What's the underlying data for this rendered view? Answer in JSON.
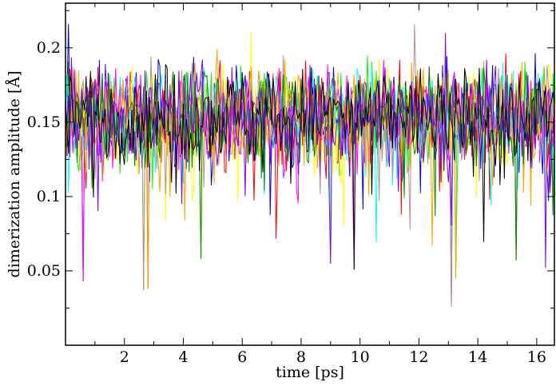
{
  "chart_data": {
    "type": "line",
    "xlabel": "time [ps]",
    "ylabel": "dimerization amplitude [Å]",
    "xlim": [
      0,
      16.6
    ],
    "ylim": [
      0,
      0.23
    ],
    "x_ticks": [
      2,
      4,
      6,
      8,
      10,
      12,
      14,
      16
    ],
    "x_tick_labels": [
      "2",
      "4",
      "6",
      "8",
      "10",
      "12",
      "14",
      "16"
    ],
    "y_ticks": [
      0.05,
      0.1,
      0.15,
      0.2
    ],
    "y_tick_labels": [
      "0.05",
      "0.1",
      "0.15",
      "0.2"
    ],
    "grid": false,
    "legend": "none",
    "sampling": {
      "dt_ps": 0.05,
      "mean": 0.155,
      "typical_max": 0.21,
      "typical_min": 0.09
    },
    "series_colors": [
      "#0000ff",
      "#00ff00",
      "#ff0000",
      "#ffff00",
      "#00ffff",
      "#ff00ff",
      "#bc8f8f",
      "#ffa500",
      "#008b00",
      "#7f00ff",
      "#000000"
    ],
    "notable_minima": [
      {
        "x": 0.6,
        "y": 0.043
      },
      {
        "x": 2.65,
        "y": 0.037
      },
      {
        "x": 2.8,
        "y": 0.038
      },
      {
        "x": 4.6,
        "y": 0.058
      },
      {
        "x": 9.0,
        "y": 0.055
      },
      {
        "x": 9.8,
        "y": 0.051
      },
      {
        "x": 13.1,
        "y": 0.026
      },
      {
        "x": 13.25,
        "y": 0.045
      },
      {
        "x": 15.3,
        "y": 0.057
      },
      {
        "x": 16.3,
        "y": 0.052
      }
    ],
    "notable_maxima": [
      {
        "x": 0.1,
        "y": 0.216
      },
      {
        "x": 6.3,
        "y": 0.211
      },
      {
        "x": 11.85,
        "y": 0.216
      },
      {
        "x": 12.9,
        "y": 0.21
      }
    ]
  }
}
